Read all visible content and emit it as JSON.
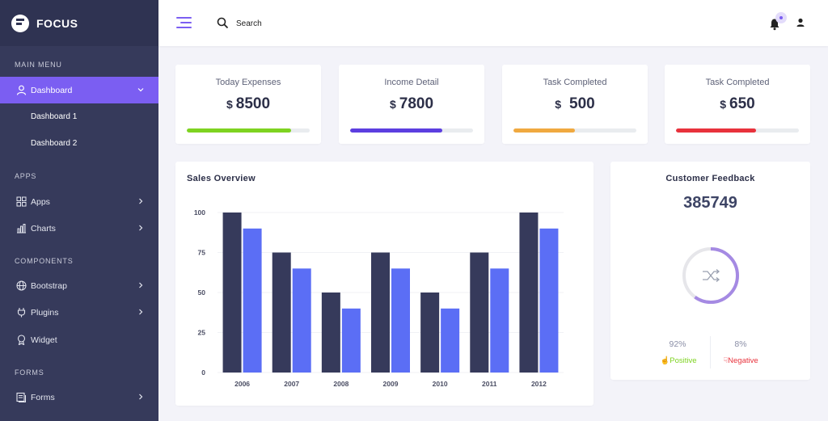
{
  "brand": {
    "name": "FOCUS"
  },
  "sidebar": {
    "sections": [
      {
        "title": "MAIN MENU"
      },
      {
        "title": "APPS"
      },
      {
        "title": "COMPONENTS"
      },
      {
        "title": "FORMS"
      }
    ],
    "items": [
      {
        "label": "Dashboard",
        "icon": "user-icon",
        "active": true
      },
      {
        "label": "Apps",
        "icon": "grid-icon"
      },
      {
        "label": "Charts",
        "icon": "chart-icon"
      },
      {
        "label": "Bootstrap",
        "icon": "globe-icon"
      },
      {
        "label": "Plugins",
        "icon": "plug-icon"
      },
      {
        "label": "Widget",
        "icon": "badge-icon"
      },
      {
        "label": "Forms",
        "icon": "form-icon"
      }
    ],
    "subitems": [
      {
        "label": "Dashboard 1"
      },
      {
        "label": "Dashboard 2"
      }
    ]
  },
  "header": {
    "search_placeholder": "Search",
    "accent": "#7b5ef2"
  },
  "stats": [
    {
      "title": "Today Expenses",
      "currency": "$",
      "value": "8500",
      "progress": 0.85,
      "color": "#7ed321"
    },
    {
      "title": "Income Detail",
      "currency": "$",
      "value": "7800",
      "progress": 0.75,
      "color": "#5c3ee0"
    },
    {
      "title": "Task Completed",
      "currency": "$",
      "value": "500",
      "progress": 0.5,
      "color": "#f0a940"
    },
    {
      "title": "Task Completed",
      "currency": "$",
      "value": "650",
      "progress": 0.65,
      "color": "#e8323c"
    }
  ],
  "sales": {
    "title": "Sales Overview"
  },
  "chart_data": {
    "type": "bar",
    "categories": [
      "2006",
      "2007",
      "2008",
      "2009",
      "2010",
      "2011",
      "2012"
    ],
    "series": [
      {
        "values": [
          100,
          75,
          50,
          75,
          50,
          75,
          100
        ],
        "color": "#363a5b"
      },
      {
        "values": [
          90,
          65,
          40,
          65,
          40,
          65,
          90
        ],
        "color": "#5b6ef5"
      }
    ],
    "yticks": [
      "0",
      "25",
      "50",
      "75",
      "100"
    ],
    "ylim": [
      0,
      100
    ],
    "grid": true
  },
  "feedback": {
    "title": "Customer Feedback",
    "value": "385749",
    "ring_fraction": 0.6,
    "positive_pct": "92%",
    "positive_label": "Positive",
    "negative_pct": "8%",
    "negative_label": "Negative",
    "positive_color": "#7ed321",
    "negative_color": "#e8323c"
  }
}
